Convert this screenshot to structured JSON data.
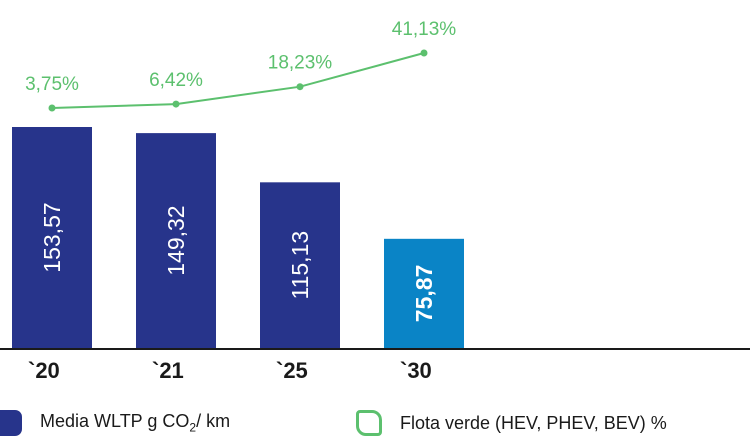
{
  "colors": {
    "bar": "#27348b",
    "bar_highlight": "#0a84c6",
    "line": "#5cc06e",
    "axis": "#1a1a1a"
  },
  "chart_data": {
    "type": "bar",
    "categories": [
      "`20",
      "`21",
      "`25",
      "`30"
    ],
    "series": [
      {
        "name": "Media WLTP g CO2/ km",
        "type": "bar",
        "values": [
          153.57,
          149.32,
          115.13,
          75.87
        ],
        "labels": [
          "153,57",
          "149,32",
          "115,13",
          "75,87"
        ],
        "highlight_index": 3
      },
      {
        "name": "Flota verde (HEV, PHEV, BEV) %",
        "type": "line",
        "values": [
          3.75,
          6.42,
          18.23,
          41.13
        ],
        "labels": [
          "3,75%",
          "6,42%",
          "18,23%",
          "41,13%"
        ]
      }
    ],
    "ylim": [
      0,
      160
    ],
    "grid": false,
    "legend_position": "bottom"
  },
  "legend": {
    "bar_text": "Media WLTP g CO",
    "bar_sub": "2",
    "bar_suffix": "/ km",
    "line_text": "Flota verde (HEV, PHEV, BEV) %"
  }
}
